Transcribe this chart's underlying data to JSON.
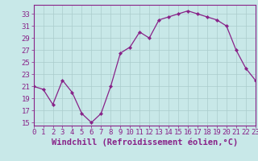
{
  "x": [
    0,
    1,
    2,
    3,
    4,
    5,
    6,
    7,
    8,
    9,
    10,
    11,
    12,
    13,
    14,
    15,
    16,
    17,
    18,
    19,
    20,
    21,
    22,
    23
  ],
  "y": [
    21,
    20.5,
    18,
    22,
    20,
    16.5,
    15,
    16.5,
    21,
    26.5,
    27.5,
    30,
    29,
    32,
    32.5,
    33,
    33.5,
    33,
    32.5,
    32,
    31,
    27,
    24,
    22
  ],
  "line_color": "#882288",
  "marker_color": "#882288",
  "bg_color": "#c8e8e8",
  "grid_color": "#aacccc",
  "xlabel": "Windchill (Refroidissement éolien,°C)",
  "xlim": [
    0,
    23
  ],
  "ylim": [
    14.5,
    34.5
  ],
  "yticks": [
    15,
    17,
    19,
    21,
    23,
    25,
    27,
    29,
    31,
    33
  ],
  "xticks": [
    0,
    1,
    2,
    3,
    4,
    5,
    6,
    7,
    8,
    9,
    10,
    11,
    12,
    13,
    14,
    15,
    16,
    17,
    18,
    19,
    20,
    21,
    22,
    23
  ],
  "label_color": "#882288",
  "tick_fontsize": 6.5,
  "xlabel_fontsize": 7.5
}
